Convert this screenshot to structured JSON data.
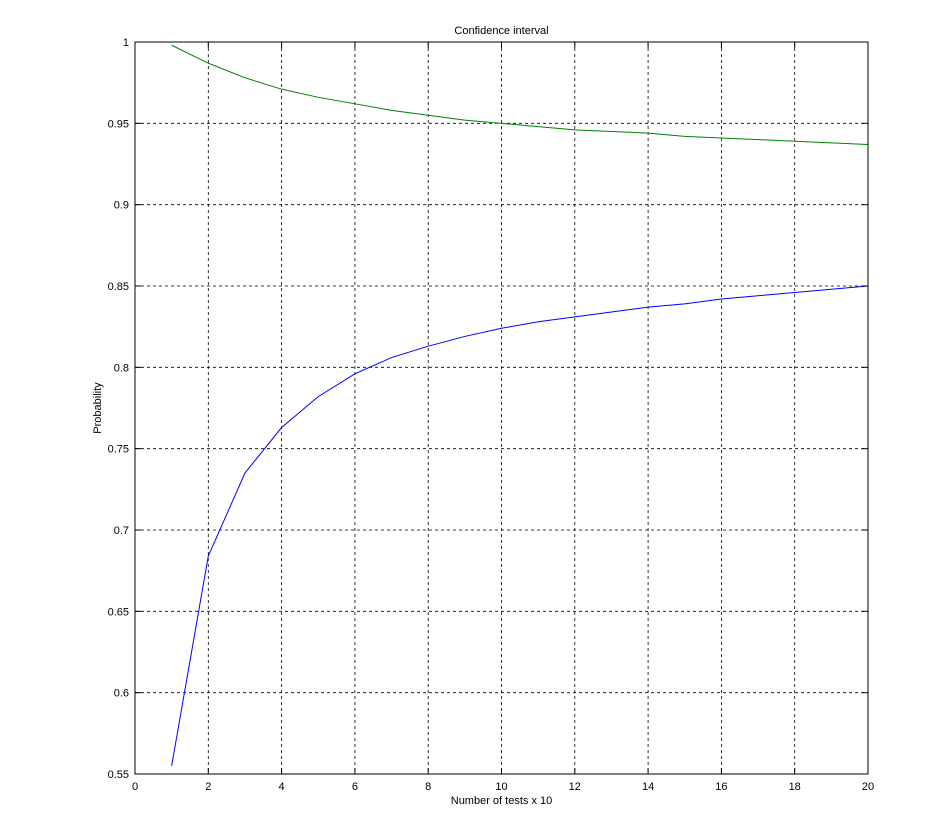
{
  "chart_data": {
    "type": "line",
    "title": "Confidence interval",
    "xlabel": "Number of tests x 10",
    "ylabel": "Probability",
    "xlim": [
      0,
      20
    ],
    "ylim": [
      0.55,
      1
    ],
    "xticks": [
      0,
      2,
      4,
      6,
      8,
      10,
      12,
      14,
      16,
      18,
      20
    ],
    "xtick_labels": [
      "0",
      "2",
      "4",
      "6",
      "8",
      "10",
      "12",
      "14",
      "16",
      "18",
      "20"
    ],
    "yticks": [
      0.55,
      0.6,
      0.65,
      0.7,
      0.75,
      0.8,
      0.85,
      0.9,
      0.95,
      1
    ],
    "ytick_labels": [
      "0.55",
      "0.6",
      "0.65",
      "0.7",
      "0.75",
      "0.8",
      "0.85",
      "0.9",
      "0.95",
      "1"
    ],
    "grid": true,
    "x": [
      1,
      2,
      3,
      4,
      5,
      6,
      7,
      8,
      9,
      10,
      11,
      12,
      13,
      14,
      15,
      16,
      17,
      18,
      19,
      20
    ],
    "series": [
      {
        "color": "#008000",
        "values": [
          0.998,
          0.987,
          0.978,
          0.971,
          0.966,
          0.962,
          0.958,
          0.955,
          0.952,
          0.95,
          0.948,
          0.946,
          0.945,
          0.944,
          0.942,
          0.941,
          0.94,
          0.939,
          0.938,
          0.937
        ]
      },
      {
        "color": "#0000ff",
        "values": [
          0.555,
          0.684,
          0.735,
          0.763,
          0.782,
          0.796,
          0.806,
          0.813,
          0.819,
          0.824,
          0.828,
          0.831,
          0.834,
          0.837,
          0.839,
          0.842,
          0.844,
          0.846,
          0.848,
          0.85
        ]
      }
    ]
  }
}
